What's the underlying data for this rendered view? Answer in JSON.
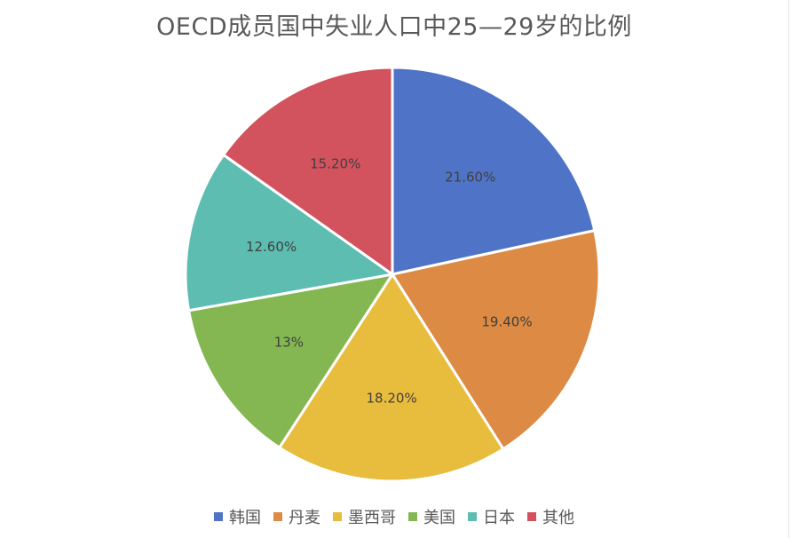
{
  "chart_data": {
    "type": "pie",
    "title": "OECD成员国中失业人口中25—29岁的比例",
    "categories": [
      "韩国",
      "丹麦",
      "墨西哥",
      "美国",
      "日本",
      "其他"
    ],
    "values": [
      21.6,
      19.4,
      18.2,
      13,
      12.6,
      15.2
    ],
    "data_labels": [
      "21.60%",
      "19.40%",
      "18.20%",
      "13%",
      "12.60%",
      "15.20%"
    ],
    "colors": [
      "#4f73c6",
      "#dc8a44",
      "#e8bd3d",
      "#84b752",
      "#5dbdb1",
      "#d2525e"
    ],
    "legend_position": "bottom"
  }
}
